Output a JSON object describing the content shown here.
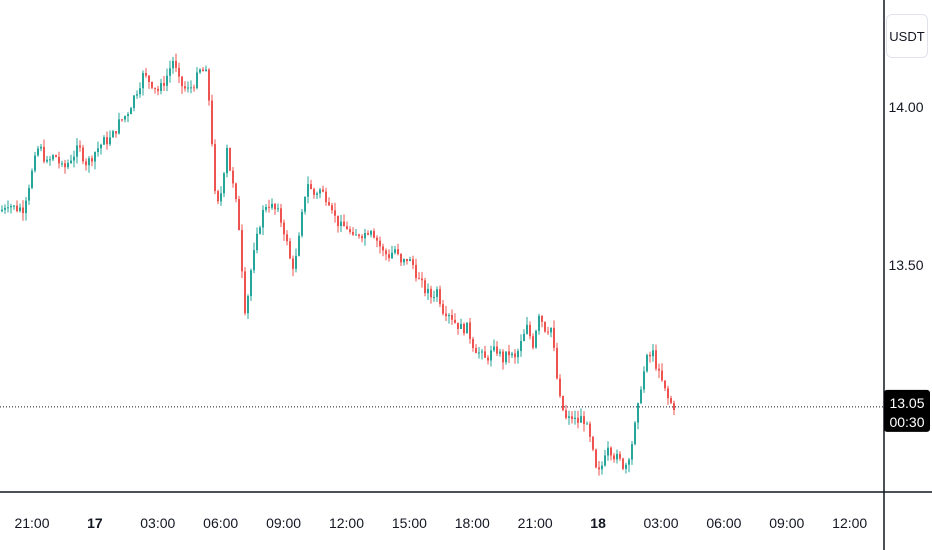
{
  "chart_data": {
    "type": "candlestick",
    "unit": "USDT",
    "ylim": [
      12.78,
      14.34
    ],
    "y_ticks": [
      {
        "value": 14.0,
        "label": "14.00"
      },
      {
        "value": 13.5,
        "label": "13.50"
      }
    ],
    "x_ticks": [
      {
        "label": "21:00",
        "bold": false
      },
      {
        "label": "17",
        "bold": true
      },
      {
        "label": "03:00",
        "bold": false
      },
      {
        "label": "06:00",
        "bold": false
      },
      {
        "label": "09:00",
        "bold": false
      },
      {
        "label": "12:00",
        "bold": false
      },
      {
        "label": "15:00",
        "bold": false
      },
      {
        "label": "18:00",
        "bold": false
      },
      {
        "label": "21:00",
        "bold": false
      },
      {
        "label": "18",
        "bold": true
      },
      {
        "label": "03:00",
        "bold": false
      },
      {
        "label": "06:00",
        "bold": false
      },
      {
        "label": "09:00",
        "bold": false
      },
      {
        "label": "12:00",
        "bold": false
      }
    ],
    "last_price": {
      "value": 13.05,
      "label": "13.05",
      "countdown": "00:30"
    },
    "close_path": [
      [
        0,
        13.67
      ],
      [
        6,
        13.7
      ],
      [
        14,
        13.68
      ],
      [
        22,
        13.68
      ],
      [
        30,
        13.78
      ],
      [
        38,
        13.88
      ],
      [
        46,
        13.82
      ],
      [
        54,
        13.85
      ],
      [
        62,
        13.8
      ],
      [
        70,
        13.84
      ],
      [
        78,
        13.87
      ],
      [
        86,
        13.82
      ],
      [
        94,
        13.86
      ],
      [
        102,
        13.89
      ],
      [
        110,
        13.9
      ],
      [
        118,
        13.95
      ],
      [
        126,
        13.98
      ],
      [
        134,
        14.04
      ],
      [
        142,
        14.1
      ],
      [
        150,
        14.08
      ],
      [
        158,
        14.05
      ],
      [
        166,
        14.1
      ],
      [
        172,
        14.15
      ],
      [
        178,
        14.08
      ],
      [
        186,
        14.05
      ],
      [
        194,
        14.08
      ],
      [
        200,
        14.12
      ],
      [
        206,
        14.1
      ],
      [
        210,
        13.95
      ],
      [
        214,
        13.72
      ],
      [
        218,
        13.68
      ],
      [
        222,
        13.78
      ],
      [
        226,
        13.88
      ],
      [
        230,
        13.78
      ],
      [
        234,
        13.72
      ],
      [
        238,
        13.62
      ],
      [
        242,
        13.45
      ],
      [
        245,
        13.32
      ],
      [
        248,
        13.45
      ],
      [
        254,
        13.55
      ],
      [
        260,
        13.65
      ],
      [
        266,
        13.7
      ],
      [
        272,
        13.68
      ],
      [
        278,
        13.66
      ],
      [
        284,
        13.6
      ],
      [
        290,
        13.5
      ],
      [
        294,
        13.5
      ],
      [
        298,
        13.58
      ],
      [
        302,
        13.68
      ],
      [
        306,
        13.77
      ],
      [
        312,
        13.72
      ],
      [
        318,
        13.74
      ],
      [
        324,
        13.72
      ],
      [
        330,
        13.7
      ],
      [
        334,
        13.65
      ],
      [
        340,
        13.62
      ],
      [
        346,
        13.62
      ],
      [
        352,
        13.58
      ],
      [
        358,
        13.6
      ],
      [
        364,
        13.6
      ],
      [
        370,
        13.62
      ],
      [
        376,
        13.58
      ],
      [
        382,
        13.54
      ],
      [
        388,
        13.53
      ],
      [
        394,
        13.55
      ],
      [
        400,
        13.5
      ],
      [
        406,
        13.52
      ],
      [
        412,
        13.5
      ],
      [
        418,
        13.45
      ],
      [
        424,
        13.42
      ],
      [
        430,
        13.4
      ],
      [
        436,
        13.42
      ],
      [
        442,
        13.36
      ],
      [
        448,
        13.35
      ],
      [
        454,
        13.32
      ],
      [
        460,
        13.3
      ],
      [
        466,
        13.3
      ],
      [
        472,
        13.25
      ],
      [
        478,
        13.22
      ],
      [
        484,
        13.2
      ],
      [
        490,
        13.22
      ],
      [
        496,
        13.23
      ],
      [
        502,
        13.2
      ],
      [
        508,
        13.22
      ],
      [
        514,
        13.2
      ],
      [
        520,
        13.25
      ],
      [
        526,
        13.3
      ],
      [
        532,
        13.25
      ],
      [
        538,
        13.35
      ],
      [
        544,
        13.3
      ],
      [
        550,
        13.3
      ],
      [
        554,
        13.2
      ],
      [
        558,
        13.08
      ],
      [
        562,
        13.04
      ],
      [
        566,
        13.0
      ],
      [
        570,
        13.02
      ],
      [
        576,
        13.0
      ],
      [
        582,
        13.02
      ],
      [
        588,
        12.96
      ],
      [
        592,
        12.9
      ],
      [
        596,
        12.83
      ],
      [
        600,
        12.85
      ],
      [
        606,
        12.94
      ],
      [
        612,
        12.9
      ],
      [
        618,
        12.88
      ],
      [
        624,
        12.86
      ],
      [
        630,
        12.92
      ],
      [
        636,
        13.02
      ],
      [
        640,
        13.12
      ],
      [
        646,
        13.2
      ],
      [
        652,
        13.22
      ],
      [
        658,
        13.15
      ],
      [
        662,
        13.12
      ],
      [
        666,
        13.08
      ],
      [
        670,
        13.06
      ],
      [
        674,
        13.05
      ]
    ],
    "colors": {
      "up": "#26a69a",
      "down": "#ef5350",
      "price_line": "#131722",
      "axis_line": "#131722",
      "badge_bg": "#000000"
    }
  }
}
